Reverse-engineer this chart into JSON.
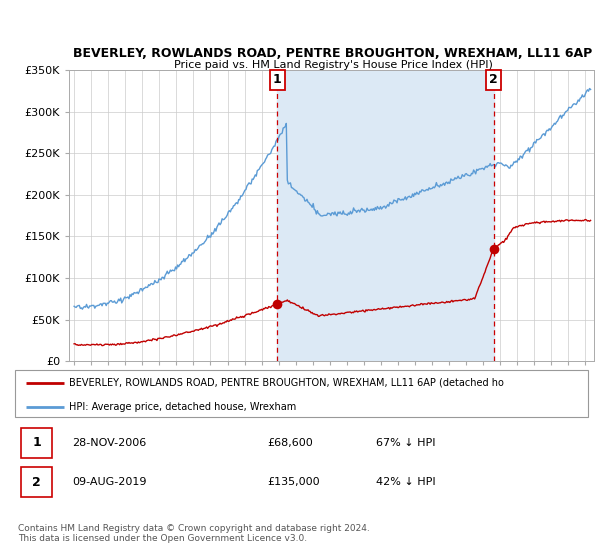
{
  "title_line1": "BEVERLEY, ROWLANDS ROAD, PENTRE BROUGHTON, WREXHAM, LL11 6AP",
  "title_line2": "Price paid vs. HM Land Registry's House Price Index (HPI)",
  "ylim": [
    0,
    350000
  ],
  "yticks": [
    0,
    50000,
    100000,
    150000,
    200000,
    250000,
    300000,
    350000
  ],
  "ytick_labels": [
    "£0",
    "£50K",
    "£100K",
    "£150K",
    "£200K",
    "£250K",
    "£300K",
    "£350K"
  ],
  "xlim_start": 1994.7,
  "xlim_end": 2025.5,
  "xticks": [
    1995,
    1996,
    1997,
    1998,
    1999,
    2000,
    2001,
    2002,
    2003,
    2004,
    2005,
    2006,
    2007,
    2008,
    2009,
    2010,
    2011,
    2012,
    2013,
    2014,
    2015,
    2016,
    2017,
    2018,
    2019,
    2020,
    2021,
    2022,
    2023,
    2024,
    2025
  ],
  "hpi_color": "#5b9bd5",
  "hpi_fill_color": "#dce9f5",
  "price_color": "#c00000",
  "vline_color": "#cc0000",
  "sale1_x": 2006.91,
  "sale1_y": 68600,
  "sale2_x": 2019.61,
  "sale2_y": 135000,
  "legend_text_red": "BEVERLEY, ROWLANDS ROAD, PENTRE BROUGHTON, WREXHAM, LL11 6AP (detached ho",
  "legend_text_blue": "HPI: Average price, detached house, Wrexham",
  "bg_color": "#ffffff",
  "grid_color": "#cccccc",
  "footnote": "Contains HM Land Registry data © Crown copyright and database right 2024.\nThis data is licensed under the Open Government Licence v3.0."
}
